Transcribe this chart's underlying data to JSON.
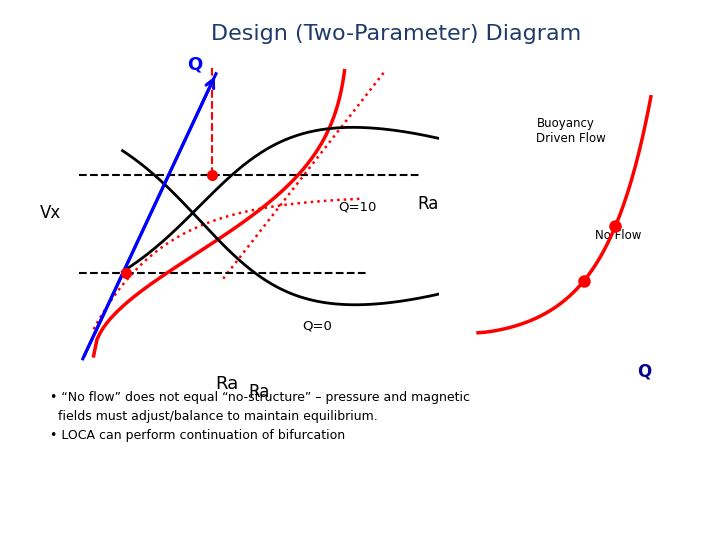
{
  "title": "Design (Two-Parameter) Diagram",
  "title_color": "#1F3B6B",
  "title_fontsize": 16,
  "left_plot": {
    "xlabel": "Ra",
    "ylabel": "Vx",
    "q_label": "Q",
    "q10_label": "Q=10",
    "q0_label": "Q=0"
  },
  "right_plot": {
    "xlabel": "Q",
    "ylabel": "Ra",
    "label1": "Buoyancy\nDriven Flow",
    "label2": "No Flow"
  },
  "bullet1": "• “No flow” does not equal “no-structure” – pressure and magnetic",
  "bullet1b": "  fields must adjust/balance to maintain equilibrium.",
  "bullet2": "• LOCA can perform continuation of bifurcation"
}
